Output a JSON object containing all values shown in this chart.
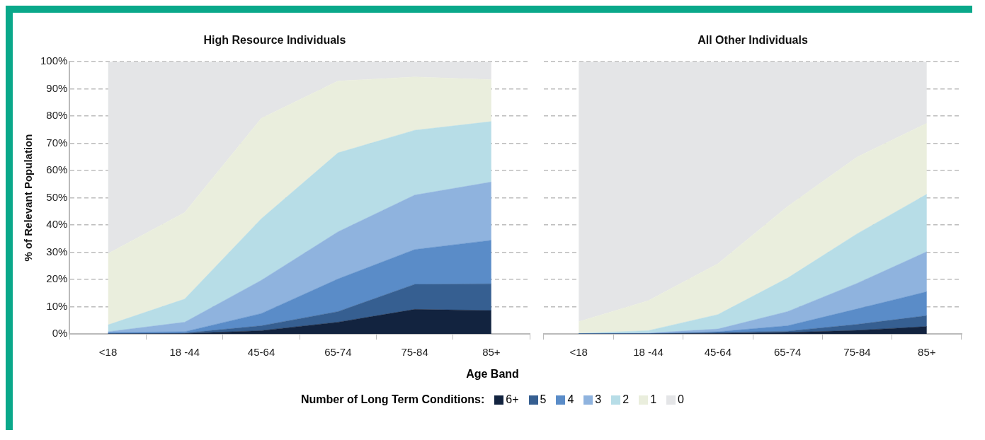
{
  "chart_data": [
    {
      "type": "area",
      "title": "High Resource Individuals",
      "xlabel": "Age Band",
      "ylabel": "% of Relevant Population",
      "legend_title": "Number of Long Term Conditions:",
      "legend": "bottom",
      "stacked": true,
      "grid": "y",
      "categories": [
        "<18",
        "18 -44",
        "45-64",
        "65-74",
        "75-84",
        "85+"
      ],
      "ylim": [
        0,
        100
      ],
      "yticks": [
        {
          "value": 0,
          "label": "0%"
        },
        {
          "value": 10,
          "label": "10%"
        },
        {
          "value": 20,
          "label": "20%"
        },
        {
          "value": 30,
          "label": "30%"
        },
        {
          "value": 40,
          "label": "40%"
        },
        {
          "value": 50,
          "label": "50%"
        },
        {
          "value": 60,
          "label": "60%"
        },
        {
          "value": 70,
          "label": "70%"
        },
        {
          "value": 80,
          "label": "80%"
        },
        {
          "value": 90,
          "label": "90%"
        },
        {
          "value": 100,
          "label": "100%"
        }
      ],
      "series": [
        {
          "name": "6+",
          "color": "#12233f",
          "values": [
            0,
            0.1,
            1.2,
            4.3,
            9.0,
            8.6
          ]
        },
        {
          "name": "5",
          "color": "#365f91",
          "values": [
            0.1,
            0.2,
            1.8,
            3.9,
            9.2,
            9.8
          ]
        },
        {
          "name": "4",
          "color": "#5a8cc8",
          "values": [
            0.4,
            0.5,
            4.5,
            12.0,
            12.8,
            16.0
          ]
        },
        {
          "name": "3",
          "color": "#8fb3de",
          "values": [
            0.3,
            3.5,
            12.2,
            17.3,
            20.0,
            21.4
          ]
        },
        {
          "name": "2",
          "color": "#b7dde7",
          "values": [
            2.5,
            8.5,
            22.6,
            29.0,
            23.8,
            22.2
          ]
        },
        {
          "name": "1",
          "color": "#eaeedd",
          "values": [
            26.2,
            31.8,
            36.9,
            26.4,
            19.6,
            15.4
          ]
        },
        {
          "name": "0",
          "color": "#e4e5e7",
          "values": [
            70.5,
            55.4,
            20.8,
            7.1,
            5.6,
            6.6
          ]
        }
      ]
    },
    {
      "type": "area",
      "title": "All Other Individuals",
      "stacked": true,
      "grid": "y",
      "tick_labels": "x",
      "categories": [
        "<18",
        "18 -44",
        "45-64",
        "65-74",
        "75-84",
        "85+"
      ],
      "ylim": [
        0,
        100
      ],
      "yticks": [
        0,
        10,
        20,
        30,
        40,
        50,
        60,
        70,
        80,
        90,
        100
      ],
      "series": [
        {
          "color": "#12233f",
          "values": [
            0,
            0,
            0.2,
            0.5,
            1.3,
            2.7
          ]
        },
        {
          "color": "#365f91",
          "values": [
            0,
            0.1,
            0.3,
            0.5,
            2.2,
            4.0
          ]
        },
        {
          "color": "#5a8cc8",
          "values": [
            0.1,
            0,
            0.3,
            2.0,
            5.7,
            8.8
          ]
        },
        {
          "color": "#8fb3de",
          "values": [
            0,
            0.2,
            1.0,
            5.2,
            9.4,
            14.7
          ]
        },
        {
          "color": "#b7dde7",
          "values": [
            0.1,
            0.9,
            5.3,
            12.3,
            18.2,
            21.1
          ]
        },
        {
          "color": "#eaeedd",
          "values": [
            4.3,
            11.0,
            18.7,
            26.3,
            28.2,
            26.1
          ]
        },
        {
          "color": "#e4e5e7",
          "values": [
            95.5,
            87.8,
            74.2,
            53.2,
            35.0,
            22.6
          ]
        }
      ]
    }
  ]
}
